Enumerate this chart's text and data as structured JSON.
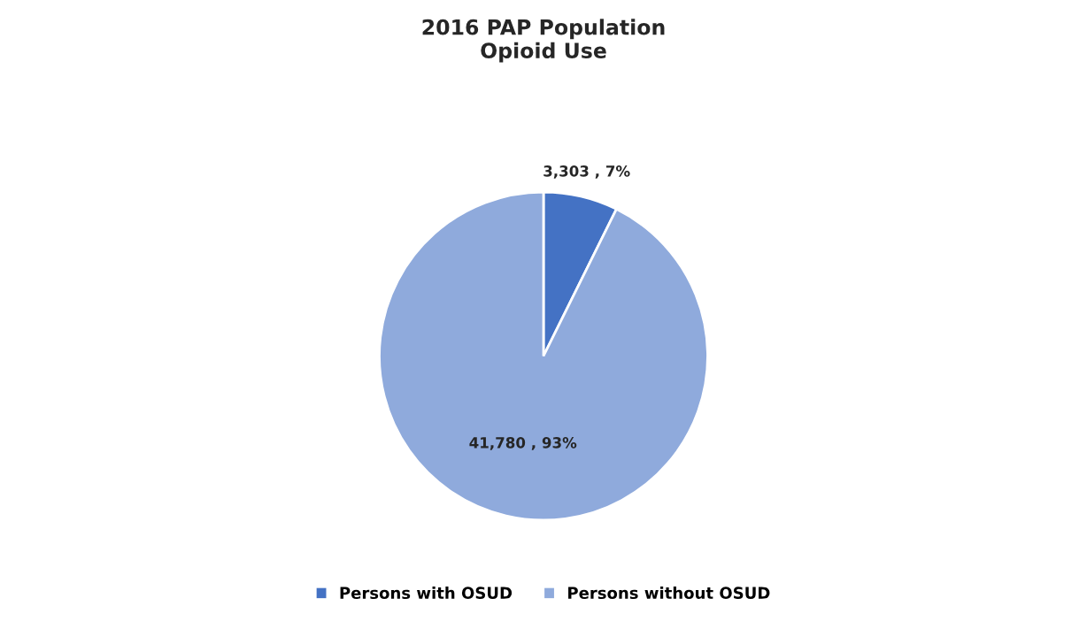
{
  "chart_data": {
    "type": "pie",
    "title": "2016 PAP Population\nOpioid Use",
    "categories": [
      "Persons with OSUD",
      "Persons without OSUD"
    ],
    "values": [
      3303,
      41780
    ],
    "colors": [
      "#4472c4",
      "#8faadc"
    ],
    "value_labels": [
      "3,303 , 7%",
      "41,780 , 93%"
    ],
    "legend": "bottom"
  }
}
